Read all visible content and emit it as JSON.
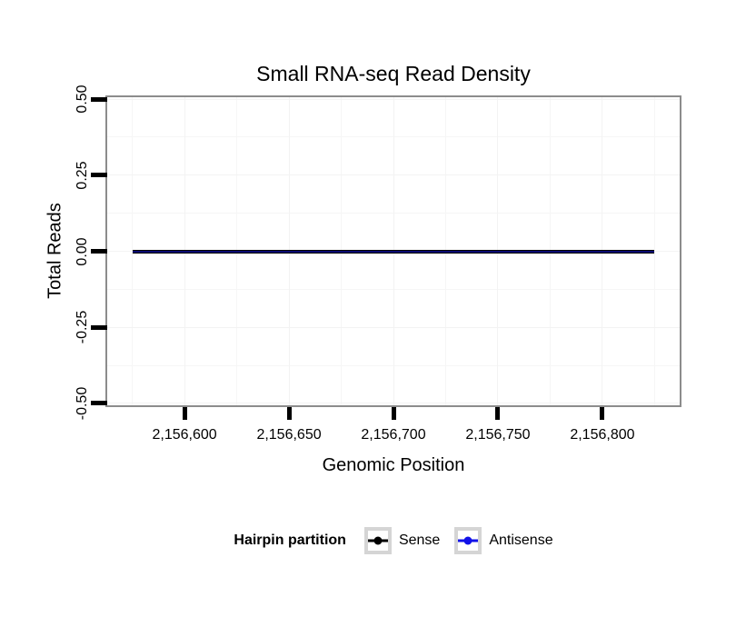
{
  "chart_data": {
    "type": "line",
    "title": "Small RNA-seq Read Density",
    "xlabel": "Genomic Position",
    "ylabel": "Total Reads",
    "xlim": [
      2156563,
      2156837
    ],
    "ylim": [
      -0.506,
      0.506
    ],
    "grid": true,
    "x_ticks": {
      "values": [
        2156600,
        2156650,
        2156700,
        2156750,
        2156800
      ],
      "labels": [
        "2,156,600",
        "2,156,650",
        "2,156,700",
        "2,156,750",
        "2,156,800"
      ],
      "minor": [
        2156575,
        2156625,
        2156675,
        2156725,
        2156775,
        2156825
      ]
    },
    "y_ticks": {
      "values": [
        0.5,
        0.25,
        0.0,
        -0.25,
        -0.5
      ],
      "labels": [
        "0.50",
        "0.25",
        "0.00",
        "-0.25",
        "-0.50"
      ],
      "minor": [
        0.375,
        0.125,
        -0.125,
        -0.375
      ]
    },
    "series": [
      {
        "name": "Sense",
        "color": "#000000",
        "x": [
          2156575,
          2156825
        ],
        "y": [
          0,
          0
        ]
      },
      {
        "name": "Antisense",
        "color": "#1212E8",
        "x": [
          2156575,
          2156825
        ],
        "y": [
          0,
          0
        ]
      }
    ],
    "legend": {
      "title": "Hairpin partition",
      "position": "bottom",
      "entries": [
        {
          "label": "Sense",
          "color": "#000000"
        },
        {
          "label": "Antisense",
          "color": "#1212E8"
        }
      ]
    }
  }
}
